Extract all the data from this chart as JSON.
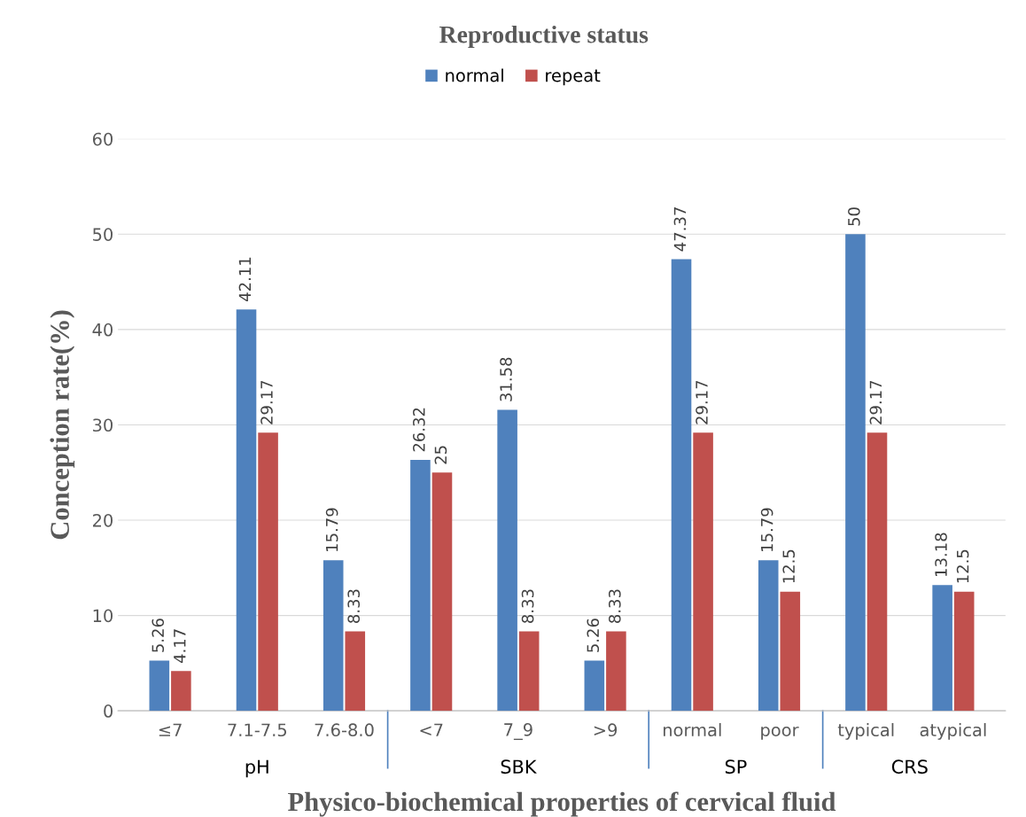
{
  "chart_data": {
    "type": "bar",
    "title": "Reproductive status",
    "xlabel": "Physico-biochemical properties of cervical fluid",
    "ylabel": "Conception rate(%)",
    "categories": [
      "≤7",
      "7.1-7.5",
      "7.6-8.0",
      "<7",
      "7_9",
      ">9",
      "normal",
      "poor",
      "typical",
      "atypical"
    ],
    "series": [
      {
        "name": "normal",
        "color": "#4f81bd",
        "values": [
          5.26,
          42.11,
          15.79,
          26.32,
          31.58,
          5.26,
          47.37,
          15.79,
          50,
          13.18
        ]
      },
      {
        "name": "repeat",
        "color": "#c0504d",
        "values": [
          4.17,
          29.17,
          8.33,
          25,
          8.33,
          8.33,
          29.17,
          12.5,
          29.17,
          12.5
        ]
      }
    ],
    "ylim": [
      0,
      60
    ],
    "yticks": [
      0,
      10,
      20,
      30,
      40,
      50,
      60
    ],
    "grid": "y",
    "legend": "top",
    "data_labels": true,
    "annotations": [
      "pH",
      "SBK",
      "SP",
      "CRS"
    ]
  }
}
